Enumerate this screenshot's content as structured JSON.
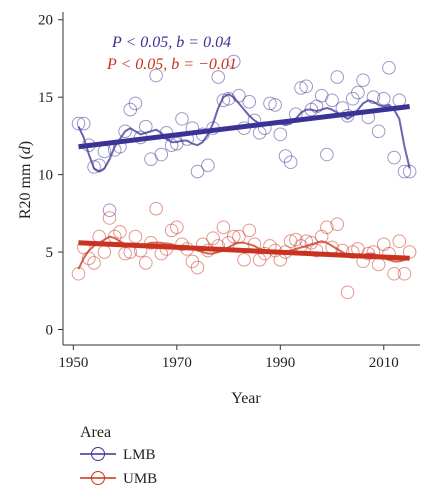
{
  "colors": {
    "lmb": "#3a3296",
    "umb": "#c8321e"
  },
  "chart_data": {
    "type": "line",
    "title": "",
    "xlabel": "Year",
    "ylabel": "R20 mm (d)",
    "xlim": [
      1948,
      2017
    ],
    "ylim": [
      -1,
      20.5
    ],
    "xticks": [
      1950,
      1970,
      1990,
      2010
    ],
    "yticks": [
      0,
      5,
      10,
      15,
      20
    ],
    "grid": false,
    "legend": {
      "title": "Area",
      "placement": "bottom-left",
      "entries": [
        "LMB",
        "UMB"
      ]
    },
    "annotations": [
      {
        "series": "LMB",
        "text": "P < 0.05, b = 0.04"
      },
      {
        "series": "UMB",
        "text": "P < 0.05, b = −0.01"
      }
    ],
    "series": [
      {
        "name": "LMB",
        "color": "#3a3296",
        "years": [
          1951,
          1952,
          1953,
          1954,
          1955,
          1956,
          1957,
          1958,
          1959,
          1960,
          1961,
          1962,
          1963,
          1964,
          1965,
          1966,
          1967,
          1968,
          1969,
          1970,
          1971,
          1972,
          1973,
          1974,
          1975,
          1976,
          1977,
          1978,
          1979,
          1980,
          1981,
          1982,
          1983,
          1984,
          1985,
          1986,
          1987,
          1988,
          1989,
          1990,
          1991,
          1992,
          1993,
          1994,
          1995,
          1996,
          1997,
          1998,
          1999,
          2000,
          2001,
          2002,
          2003,
          2004,
          2005,
          2006,
          2007,
          2008,
          2009,
          2010,
          2011,
          2012,
          2013,
          2014,
          2015
        ],
        "values": [
          13.3,
          13.3,
          11.9,
          10.5,
          10.6,
          11.5,
          7.7,
          11.6,
          11.8,
          12.8,
          14.2,
          14.6,
          12.4,
          13.1,
          11.0,
          16.4,
          11.3,
          12.7,
          11.9,
          12.0,
          13.6,
          12.3,
          13.0,
          10.2,
          12.6,
          10.6,
          13.0,
          16.3,
          14.8,
          14.9,
          17.3,
          15.1,
          13.0,
          14.7,
          13.5,
          12.7,
          13.0,
          14.6,
          14.5,
          12.6,
          11.2,
          10.8,
          13.9,
          15.6,
          15.7,
          14.2,
          14.4,
          15.1,
          11.3,
          14.8,
          16.3,
          14.3,
          13.8,
          14.9,
          15.3,
          16.1,
          13.7,
          15.0,
          12.8,
          14.9,
          16.9,
          11.1,
          14.8,
          10.2,
          10.2
        ],
        "smooth": [
          13.1,
          12.4,
          11.3,
          10.4,
          10.2,
          10.4,
          11.0,
          11.8,
          12.3,
          12.8,
          13.0,
          12.8,
          12.6,
          12.7,
          12.8,
          12.9,
          12.7,
          12.3,
          12.1,
          12.1,
          12.2,
          12.2,
          12.0,
          11.9,
          12.1,
          12.6,
          13.3,
          14.3,
          15.0,
          15.2,
          15.0,
          14.6,
          14.2,
          13.8,
          13.5,
          13.3,
          13.2,
          13.3,
          13.4,
          13.3,
          13.2,
          13.3,
          13.6,
          14.0,
          14.2,
          14.2,
          14.1,
          14.2,
          14.3,
          14.2,
          14.0,
          13.8,
          13.6,
          13.8,
          14.2,
          14.6,
          14.8,
          14.7,
          14.5,
          14.4,
          14.5,
          14.2,
          13.6,
          11.8,
          10.4
        ],
        "trend": [
          11.8,
          14.4
        ]
      },
      {
        "name": "UMB",
        "color": "#c8321e",
        "years": [
          1951,
          1952,
          1953,
          1954,
          1955,
          1956,
          1957,
          1958,
          1959,
          1960,
          1961,
          1962,
          1963,
          1964,
          1965,
          1966,
          1967,
          1968,
          1969,
          1970,
          1971,
          1972,
          1973,
          1974,
          1975,
          1976,
          1977,
          1978,
          1979,
          1980,
          1981,
          1982,
          1983,
          1984,
          1985,
          1986,
          1987,
          1988,
          1989,
          1990,
          1991,
          1992,
          1993,
          1994,
          1995,
          1996,
          1997,
          1998,
          1999,
          2000,
          2001,
          2002,
          2003,
          2004,
          2005,
          2006,
          2007,
          2008,
          2009,
          2010,
          2011,
          2012,
          2013,
          2014,
          2015
        ],
        "values": [
          3.6,
          5.3,
          4.6,
          4.3,
          6.0,
          5.0,
          7.2,
          6.0,
          6.3,
          4.9,
          5.0,
          6.0,
          5.1,
          4.3,
          5.6,
          7.8,
          4.9,
          5.2,
          6.4,
          6.6,
          5.5,
          5.2,
          4.4,
          4.0,
          5.5,
          5.1,
          5.9,
          5.4,
          6.6,
          5.6,
          6.0,
          6.0,
          4.5,
          6.4,
          5.5,
          4.5,
          4.9,
          5.4,
          5.1,
          4.5,
          5.0,
          5.7,
          5.8,
          5.4,
          5.7,
          5.6,
          5.1,
          6.0,
          6.6,
          5.3,
          6.8,
          5.1,
          2.4,
          5.0,
          5.2,
          4.4,
          4.9,
          5.0,
          4.2,
          5.5,
          4.9,
          3.6,
          5.7,
          3.6,
          5.0
        ],
        "smooth": [
          3.9,
          4.6,
          5.1,
          5.4,
          5.6,
          5.8,
          6.0,
          5.9,
          5.7,
          5.5,
          5.4,
          5.4,
          5.5,
          5.5,
          5.6,
          5.6,
          5.6,
          5.5,
          5.5,
          5.4,
          5.4,
          5.4,
          5.3,
          5.1,
          5.0,
          4.9,
          4.9,
          5.0,
          5.1,
          5.3,
          5.5,
          5.6,
          5.6,
          5.5,
          5.4,
          5.2,
          5.1,
          5.1,
          5.1,
          5.0,
          5.0,
          5.1,
          5.2,
          5.3,
          5.4,
          5.5,
          5.6,
          5.7,
          5.6,
          5.4,
          5.2,
          5.0,
          4.8,
          4.7,
          4.7,
          4.8,
          4.9,
          4.9,
          4.7,
          4.6,
          4.5,
          4.4,
          4.4,
          4.5,
          4.7
        ],
        "trend": [
          5.6,
          4.6
        ]
      }
    ]
  }
}
